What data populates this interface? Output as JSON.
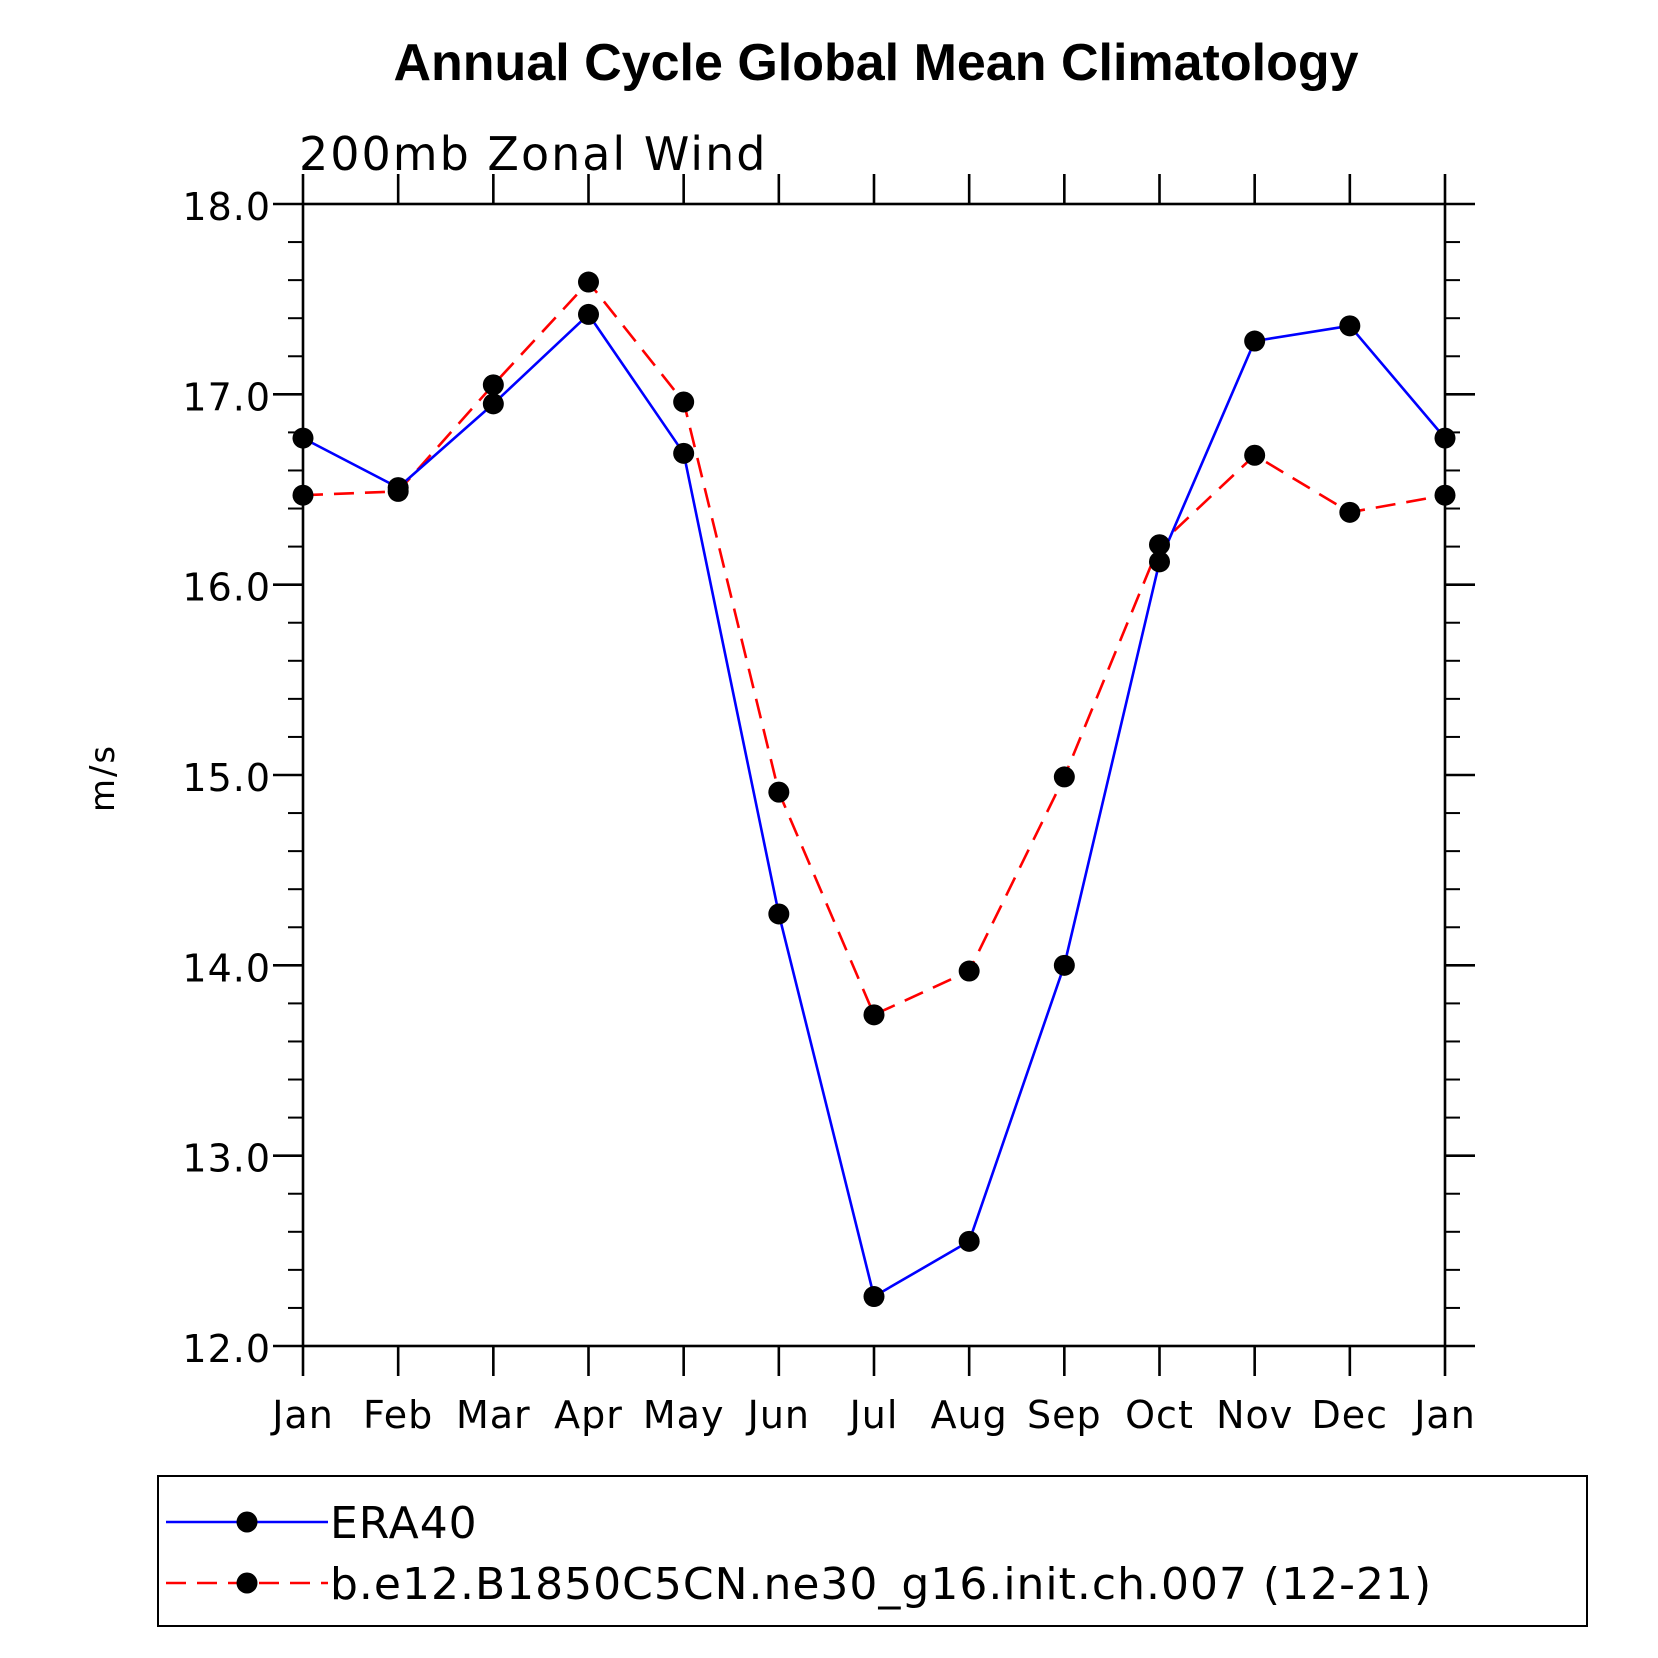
{
  "chart_data": {
    "type": "line",
    "title": "Annual Cycle Global Mean Climatology",
    "subtitle": "200mb Zonal Wind",
    "xlabel": "",
    "ylabel": "m/s",
    "categories": [
      "Jan",
      "Feb",
      "Mar",
      "Apr",
      "May",
      "Jun",
      "Jul",
      "Aug",
      "Sep",
      "Oct",
      "Nov",
      "Dec",
      "Jan"
    ],
    "yticks": [
      "12.0",
      "13.0",
      "14.0",
      "15.0",
      "16.0",
      "17.0",
      "18.0"
    ],
    "ylim": [
      12.0,
      18.0
    ],
    "grid": false,
    "legend_position": "bottom",
    "series": [
      {
        "name": "ERA40",
        "color": "#0000ff",
        "dash": "solid",
        "marker": "filled-circle",
        "values": [
          16.77,
          16.51,
          16.95,
          17.42,
          16.69,
          14.27,
          12.26,
          12.55,
          14.0,
          16.12,
          17.28,
          17.36,
          16.77
        ]
      },
      {
        "name": "b.e12.B1850C5CN.ne30_g16.init.ch.007 (12-21)",
        "color": "#ff0000",
        "dash": "dashed",
        "marker": "filled-circle",
        "values": [
          16.47,
          16.49,
          17.05,
          17.59,
          16.96,
          14.91,
          13.74,
          13.97,
          14.99,
          16.21,
          16.68,
          16.38,
          16.47
        ]
      }
    ]
  }
}
